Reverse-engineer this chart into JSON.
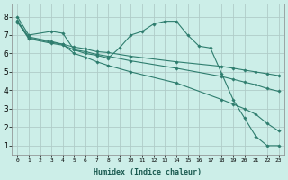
{
  "title": "",
  "xlabel": "Humidex (Indice chaleur)",
  "ylabel": "",
  "bg_color": "#cceee8",
  "line_color": "#2e7d6e",
  "grid_color": "#b0ccc8",
  "xlim": [
    -0.5,
    23.5
  ],
  "ylim": [
    0.5,
    8.7
  ],
  "xtick_labels": [
    "0",
    "1",
    "2",
    "3",
    "4",
    "5",
    "6",
    "7",
    "8",
    "9",
    "10",
    "11",
    "12",
    "13",
    "14",
    "15",
    "16",
    "17",
    "18",
    "19",
    "20",
    "21",
    "22",
    "23"
  ],
  "ytick_vals": [
    1,
    2,
    3,
    4,
    5,
    6,
    7,
    8
  ],
  "lines": [
    {
      "x": [
        0,
        1,
        3,
        4,
        5,
        6,
        7,
        8,
        9,
        10,
        11,
        12,
        13,
        14,
        15,
        16,
        17,
        18,
        19,
        20,
        21,
        22,
        23
      ],
      "y": [
        8.0,
        7.0,
        7.2,
        7.1,
        6.2,
        6.0,
        5.9,
        5.75,
        6.3,
        7.0,
        7.2,
        7.6,
        7.75,
        7.75,
        7.0,
        6.4,
        6.3,
        4.9,
        3.5,
        2.5,
        1.5,
        1.0,
        1.0
      ]
    },
    {
      "x": [
        0,
        1,
        3,
        4,
        5,
        6,
        7,
        8,
        10,
        14,
        18,
        19,
        20,
        21,
        22,
        23
      ],
      "y": [
        7.7,
        6.85,
        6.6,
        6.5,
        6.35,
        6.25,
        6.1,
        6.05,
        5.85,
        5.55,
        5.3,
        5.2,
        5.1,
        5.0,
        4.9,
        4.8
      ]
    },
    {
      "x": [
        0,
        1,
        3,
        4,
        5,
        6,
        7,
        8,
        10,
        14,
        18,
        19,
        20,
        21,
        22,
        23
      ],
      "y": [
        7.75,
        6.8,
        6.55,
        6.45,
        6.2,
        6.1,
        5.95,
        5.85,
        5.6,
        5.2,
        4.75,
        4.6,
        4.45,
        4.3,
        4.1,
        3.95
      ]
    },
    {
      "x": [
        0,
        1,
        3,
        4,
        5,
        6,
        7,
        8,
        10,
        14,
        18,
        19,
        20,
        21,
        22,
        23
      ],
      "y": [
        7.8,
        6.9,
        6.65,
        6.5,
        6.0,
        5.8,
        5.55,
        5.35,
        5.0,
        4.4,
        3.5,
        3.25,
        3.0,
        2.7,
        2.2,
        1.8
      ]
    }
  ]
}
